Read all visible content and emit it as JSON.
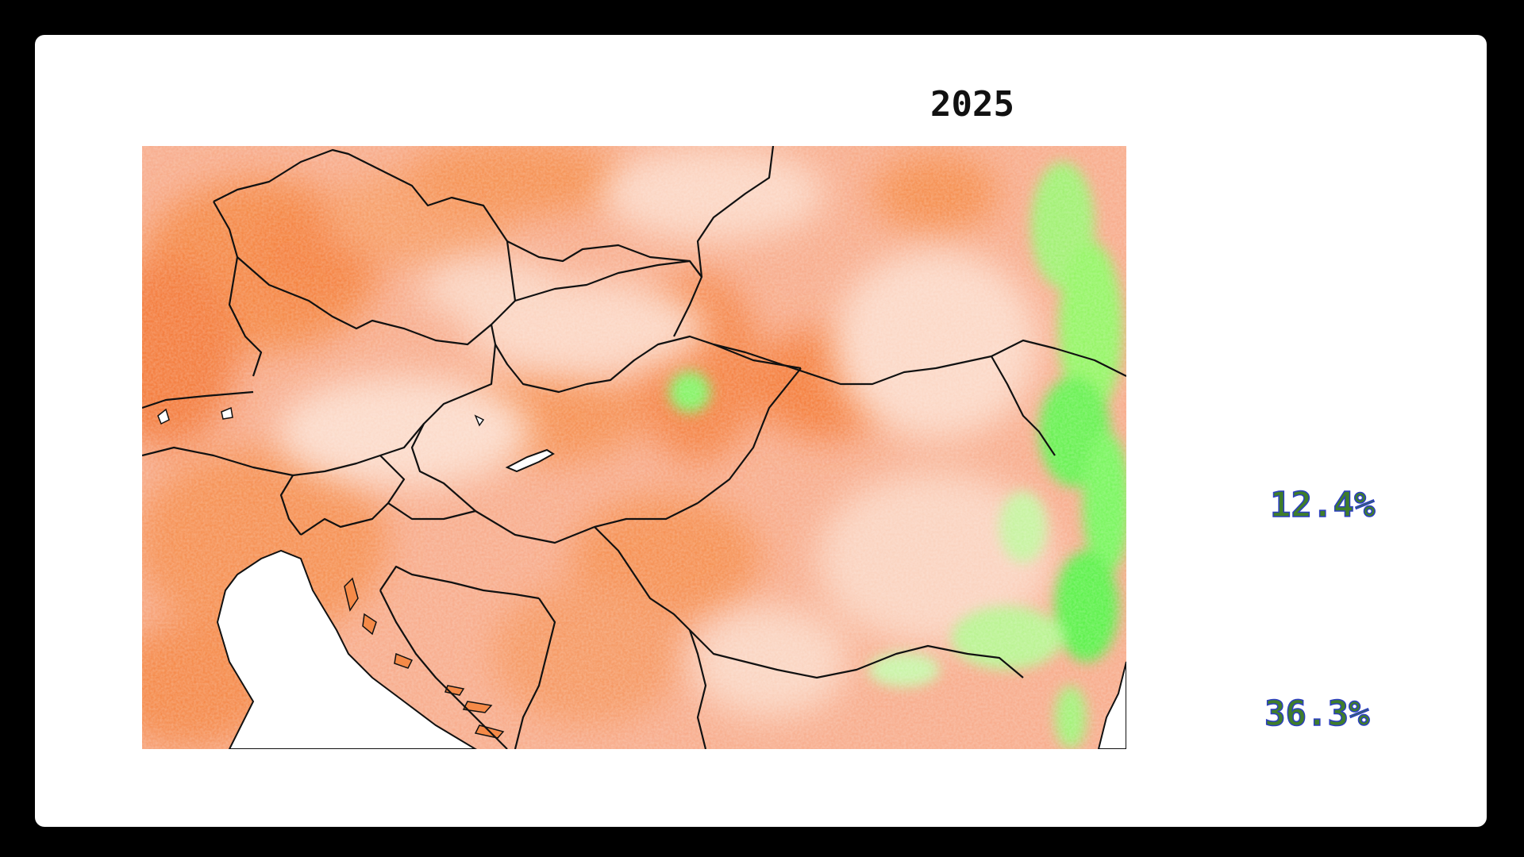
{
  "map": {
    "year": "2025",
    "colors": {
      "deficit_strong": "#f26a1a",
      "deficit_mid": "#f6925a",
      "deficit_light": "#f9b899",
      "near_zero": "#fce4d9",
      "surplus": "#9cf06a",
      "surplus_strong": "#3df53c",
      "sea": "#ffffff",
      "border": "#111111"
    }
  },
  "stats": [
    {
      "label": "12.4%"
    },
    {
      "label": "36.3%"
    }
  ]
}
